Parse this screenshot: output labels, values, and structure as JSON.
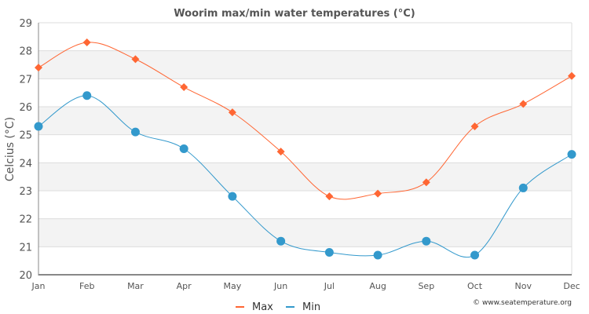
{
  "chart_data": {
    "type": "line",
    "title": "Woorim max/min water temperatures (°C)",
    "xlabel": "",
    "ylabel": "Celcius (°C)",
    "categories": [
      "Jan",
      "Feb",
      "Mar",
      "Apr",
      "May",
      "Jun",
      "Jul",
      "Aug",
      "Sep",
      "Oct",
      "Nov",
      "Dec"
    ],
    "ylim": [
      20,
      29
    ],
    "yticks": [
      "20",
      "21",
      "22",
      "23",
      "24",
      "25",
      "26",
      "27",
      "28",
      "29"
    ],
    "grid": true,
    "legend_position": "bottom-center",
    "series": [
      {
        "name": "Max",
        "color": "#ff6633",
        "marker": "diamond",
        "values": [
          27.4,
          28.3,
          27.7,
          26.7,
          25.8,
          24.4,
          22.8,
          22.9,
          23.3,
          25.3,
          26.1,
          27.1
        ]
      },
      {
        "name": "Min",
        "color": "#3399cc",
        "marker": "circle",
        "values": [
          25.3,
          26.4,
          25.1,
          24.5,
          22.8,
          21.2,
          20.8,
          20.7,
          21.2,
          20.7,
          23.1,
          24.3
        ]
      }
    ],
    "credit": "© www.seatemperature.org"
  }
}
